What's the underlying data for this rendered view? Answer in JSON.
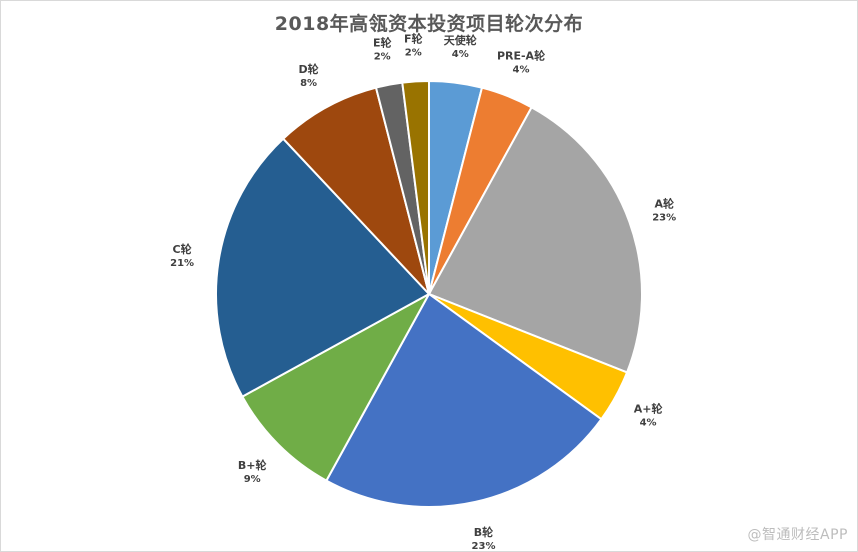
{
  "chart_data": {
    "type": "pie",
    "title": "2018年高瓴资本投资项目轮次分布",
    "start_angle_deg": 0,
    "direction": "clockwise",
    "slices": [
      {
        "label": "天使轮",
        "value": 4,
        "pct_label": "4%",
        "color": "#5b9bd5"
      },
      {
        "label": "PRE-A轮",
        "value": 4,
        "pct_label": "4%",
        "color": "#ed7d31"
      },
      {
        "label": "A轮",
        "value": 23,
        "pct_label": "23%",
        "color": "#a5a5a5"
      },
      {
        "label": "A+轮",
        "value": 4,
        "pct_label": "4%",
        "color": "#ffc000"
      },
      {
        "label": "B轮",
        "value": 23,
        "pct_label": "23%",
        "color": "#4472c4"
      },
      {
        "label": "B+轮",
        "value": 9,
        "pct_label": "9%",
        "color": "#70ad47"
      },
      {
        "label": "C轮",
        "value": 21,
        "pct_label": "21%",
        "color": "#255e91"
      },
      {
        "label": "D轮",
        "value": 8,
        "pct_label": "8%",
        "color": "#9e480e"
      },
      {
        "label": "E轮",
        "value": 2,
        "pct_label": "2%",
        "color": "#636363"
      },
      {
        "label": "F轮",
        "value": 2,
        "pct_label": "2%",
        "color": "#997300"
      }
    ]
  },
  "watermark": "@智通财经APP"
}
